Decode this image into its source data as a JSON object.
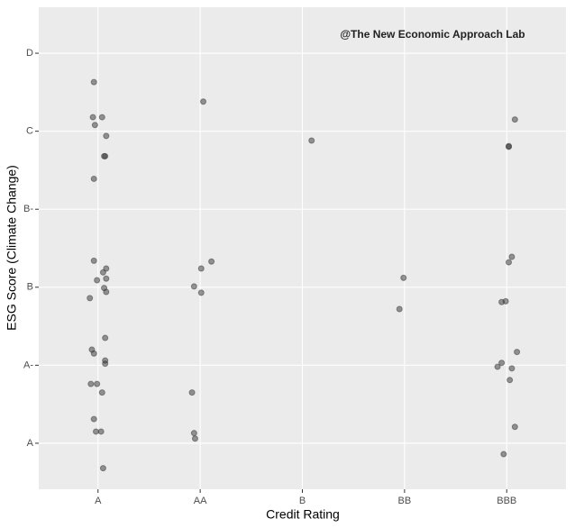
{
  "chart_data": {
    "type": "scatter",
    "annotation": "@The New Economic Approach Lab",
    "x_label": "Credit Rating",
    "y_label": "ESG Score (Climate Change)",
    "xlim": [
      0.42,
      5.58
    ],
    "ylim": [
      0.41,
      6.59
    ],
    "xticks": [
      {
        "value": 1,
        "label": "A"
      },
      {
        "value": 2,
        "label": "AA"
      },
      {
        "value": 3,
        "label": "B"
      },
      {
        "value": 4,
        "label": "BB"
      },
      {
        "value": 5,
        "label": "BBB"
      }
    ],
    "yticks": [
      {
        "value": 1,
        "label": "A"
      },
      {
        "value": 2,
        "label": "A-"
      },
      {
        "value": 3,
        "label": "B"
      },
      {
        "value": 4,
        "label": "B-"
      },
      {
        "value": 5,
        "label": "C"
      },
      {
        "value": 6,
        "label": "D"
      }
    ],
    "grid": true,
    "color": "#333333",
    "alpha": 0.5,
    "x": [
      0.96,
      0.95,
      1.04,
      0.97,
      1.08,
      1.07,
      1.06,
      0.96,
      0.96,
      1.08,
      1.05,
      1.08,
      0.99,
      1.06,
      1.08,
      0.92,
      1.07,
      0.94,
      0.96,
      1.07,
      1.07,
      0.93,
      0.99,
      1.04,
      0.96,
      0.98,
      1.03,
      1.05,
      2.03,
      2.01,
      2.11,
      1.94,
      2.01,
      1.92,
      1.94,
      1.95,
      3.09,
      3.99,
      3.95,
      5.08,
      5.02,
      5.02,
      5.05,
      5.02,
      4.99,
      4.95,
      5.1,
      4.95,
      4.91,
      5.05,
      5.03,
      5.08,
      4.97
    ],
    "y": [
      5.63,
      5.18,
      5.18,
      5.08,
      4.94,
      4.68,
      4.68,
      4.39,
      3.34,
      3.24,
      3.19,
      3.11,
      3.09,
      2.99,
      2.94,
      2.86,
      2.35,
      2.2,
      2.15,
      2.06,
      2.02,
      1.76,
      1.76,
      1.65,
      1.31,
      1.15,
      1.15,
      0.68,
      5.38,
      3.24,
      3.33,
      3.01,
      2.93,
      1.65,
      1.13,
      1.06,
      4.88,
      3.12,
      2.72,
      5.15,
      4.81,
      4.8,
      3.39,
      3.32,
      2.82,
      2.81,
      2.17,
      2.03,
      1.98,
      1.96,
      1.81,
      1.21,
      0.86
    ]
  }
}
